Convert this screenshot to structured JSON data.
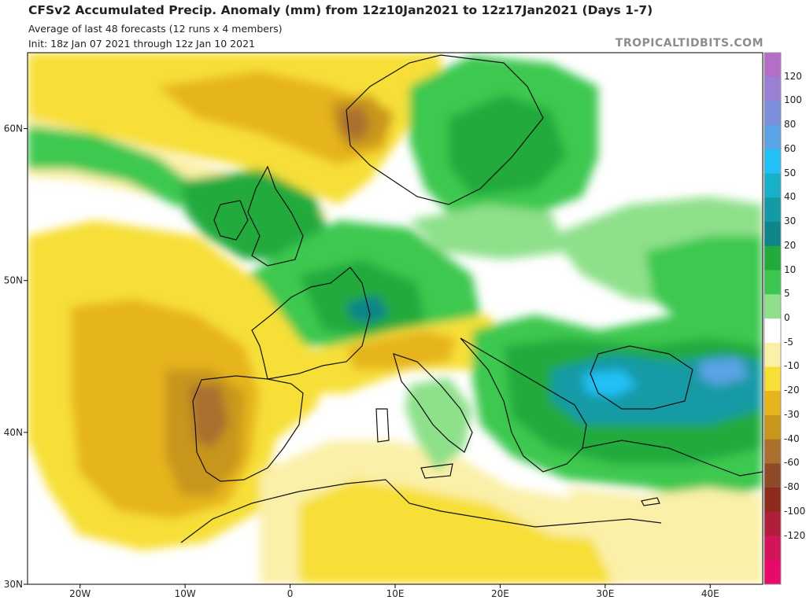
{
  "header": {
    "title": "CFSv2 Accumulated Precip. Anomaly (mm) from 12z10Jan2021 to 12z17Jan2021 (Days 1-7)",
    "subtitle1": "Average of last 48 forecasts (12 runs x 4 members)",
    "subtitle2": "Init: 18z Jan 07 2021 through 12z Jan 10 2021"
  },
  "brand": "TROPICALTIDBITS.COM",
  "chart_data": {
    "type": "heatmap",
    "title": "CFSv2 Accumulated Precip. Anomaly (mm) from 12z10Jan2021 to 12z17Jan2021 (Days 1-7)",
    "x_axis": {
      "range": [
        -25,
        45
      ],
      "ticks": [
        "20W",
        "10W",
        "0",
        "10E",
        "20E",
        "30E",
        "40E"
      ],
      "tick_values": [
        -20,
        -10,
        0,
        10,
        20,
        30,
        40
      ]
    },
    "y_axis": {
      "range": [
        30,
        65
      ],
      "ticks": [
        "30N",
        "40N",
        "50N",
        "60N"
      ],
      "tick_values": [
        30,
        40,
        50,
        60
      ]
    },
    "colorbar": {
      "levels": [
        "120",
        "100",
        "80",
        "60",
        "50",
        "40",
        "30",
        "20",
        "10",
        "5",
        "0",
        "-5",
        "-10",
        "-20",
        "-30",
        "-40",
        "-60",
        "-80",
        "-100",
        "-120"
      ],
      "colors": [
        "#b46ec8",
        "#9a7fd2",
        "#7b8fdc",
        "#5aa3e6",
        "#23c0f5",
        "#17b0c8",
        "#129aa5",
        "#0e8588",
        "#22aa3c",
        "#3cc850",
        "#8ee08a",
        "#ffffff",
        "#fbf0a8",
        "#f7df38",
        "#e6b41c",
        "#c8961a",
        "#a9702e",
        "#8f4a2a",
        "#8c2a1c",
        "#b01e3c",
        "#d2145a",
        "#e80a6a"
      ]
    },
    "regions": [
      {
        "lon": -1,
        "lat": 62,
        "value": -20
      },
      {
        "lon": 6,
        "lat": 60,
        "value": -40
      },
      {
        "lon": -17,
        "lat": 59,
        "value": 10
      },
      {
        "lon": -3,
        "lat": 54,
        "value": 20
      },
      {
        "lon": 14,
        "lat": 60,
        "value": 20
      },
      {
        "lon": 24,
        "lat": 63,
        "value": 20
      },
      {
        "lon": 8,
        "lat": 48,
        "value": 20
      },
      {
        "lon": -14,
        "lat": 44,
        "value": -20
      },
      {
        "lon": -8,
        "lat": 41,
        "value": -40
      },
      {
        "lon": -17,
        "lat": 36,
        "value": -20
      },
      {
        "lon": 11,
        "lat": 45,
        "value": -10
      },
      {
        "lon": 20,
        "lat": 47,
        "value": 0
      },
      {
        "lon": 28,
        "lat": 43,
        "value": 40
      },
      {
        "lon": 41,
        "lat": 44,
        "value": 50
      },
      {
        "lon": 30,
        "lat": 38,
        "value": 20
      },
      {
        "lon": 40,
        "lat": 50,
        "value": 10
      },
      {
        "lon": 10,
        "lat": 34,
        "value": -5
      },
      {
        "lon": 30,
        "lat": 32,
        "value": 0
      }
    ]
  }
}
